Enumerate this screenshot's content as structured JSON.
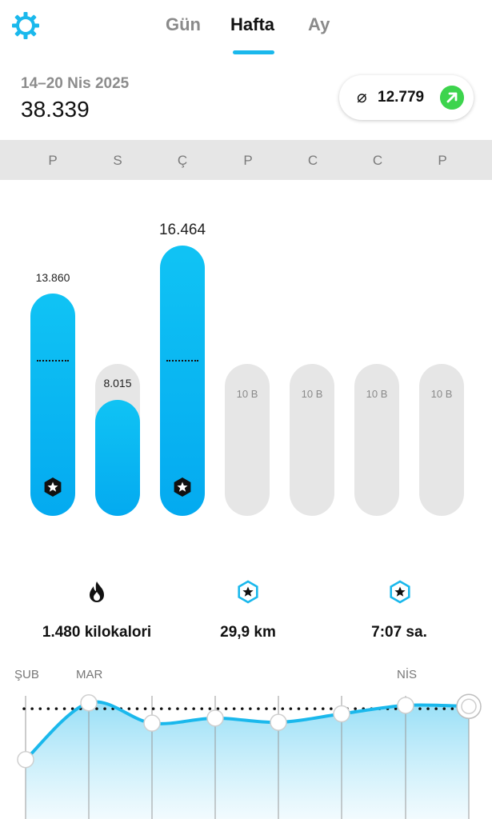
{
  "header": {
    "settings_icon": "gear-icon",
    "tabs": [
      {
        "label": "Gün",
        "active": false
      },
      {
        "label": "Hafta",
        "active": true
      },
      {
        "label": "Ay",
        "active": false
      }
    ]
  },
  "summary": {
    "date_range": "14–20 Nis 2025",
    "total_steps": "38.339",
    "average_symbol": "⌀",
    "average": "12.779",
    "trend_icon": "arrow-up-right-icon"
  },
  "days": [
    "P",
    "S",
    "Ç",
    "P",
    "C",
    "C",
    "P"
  ],
  "bars": [
    {
      "day": "P",
      "value": 13860,
      "label": "13.860",
      "goal_reached": true
    },
    {
      "day": "S",
      "value": 8015,
      "label": "8.015",
      "goal_reached": false
    },
    {
      "day": "Ç",
      "value": 16464,
      "label": "16.464",
      "goal_reached": true
    },
    {
      "day": "P",
      "value": null,
      "goal_label": "10 B"
    },
    {
      "day": "C",
      "value": null,
      "goal_label": "10 B"
    },
    {
      "day": "C",
      "value": null,
      "goal_label": "10 B"
    },
    {
      "day": "P",
      "value": null,
      "goal_label": "10 B"
    }
  ],
  "stats": {
    "calories": "1.480 kilokalori",
    "distance": "29,9 km",
    "duration": "7:07 sa."
  },
  "trend": {
    "months": [
      "ŞUB",
      "MAR",
      "NİS"
    ],
    "points": [
      6500,
      13200,
      10800,
      11400,
      10900,
      11900,
      12900,
      12779
    ],
    "goal": 12500,
    "colors": {
      "line": "#1ab8ec",
      "fill": "#d9f3fc"
    }
  },
  "colors": {
    "accent": "#1ab8ec",
    "bar_fill": "#0bb6f3",
    "track": "#e6e6e6",
    "positive": "#3dd44d"
  }
}
